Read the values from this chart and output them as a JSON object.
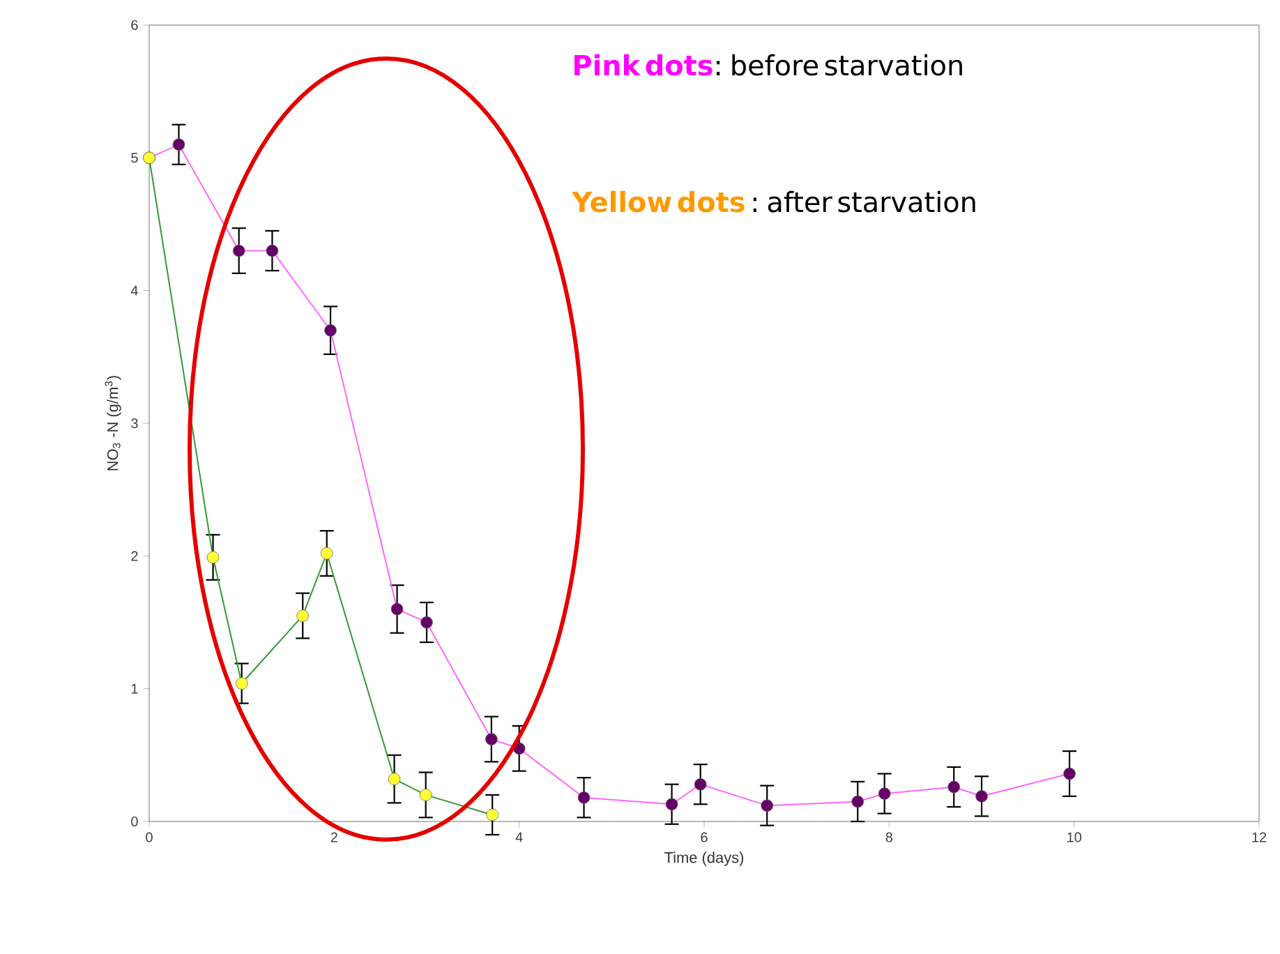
{
  "chart_data": {
    "type": "line",
    "xlabel": "Time (days)",
    "ylabel": "NO$_{3}$ -N (g/m$^{3}$)",
    "xlim": [
      0,
      12
    ],
    "xticks": [
      0,
      2,
      4,
      6,
      8,
      10,
      12
    ],
    "ylim": [
      0,
      6
    ],
    "yticks": [
      0,
      1,
      2,
      3,
      4,
      5,
      6
    ],
    "marker": "circle",
    "grid": false,
    "annotations": [
      "Pink dots",
      ": before starvation",
      "Yellow dots",
      " : after starvation"
    ],
    "series": [
      {
        "color": "#ff66ff",
        "colors": [
          "#660066",
          "#660066",
          "#660066",
          "#660066",
          "#660066",
          "#660066",
          "#660066",
          "#660066",
          "#660066",
          "#660066",
          "#660066",
          "#660066",
          "#660066",
          "#660066",
          "#660066",
          "#660066",
          "#660066",
          "#660066"
        ],
        "x": [
          0,
          0.32,
          0.97,
          1.33,
          1.96,
          2.68,
          3.0,
          3.7,
          4.0,
          4.7,
          5.65,
          5.96,
          6.68,
          7.66,
          7.95,
          8.7,
          9.0,
          9.95
        ],
        "values": [
          5.0,
          5.1,
          4.3,
          4.3,
          3.7,
          1.6,
          1.5,
          0.62,
          0.55,
          0.18,
          0.13,
          0.28,
          0.12,
          0.15,
          0.21,
          0.26,
          0.19,
          0.36
        ],
        "errors": [
          null,
          0.15,
          0.17,
          0.15,
          0.18,
          0.18,
          0.15,
          0.17,
          0.17,
          0.15,
          0.15,
          0.15,
          0.15,
          0.15,
          0.15,
          0.15,
          0.15,
          0.17
        ]
      },
      {
        "color": "#339933",
        "colors": [
          "#ffff33",
          "#ffff33",
          "#ffff33",
          "#ffff33",
          "#ffff33",
          "#ffff33",
          "#ffff33",
          "#ffff33"
        ],
        "x": [
          0,
          0.69,
          1.0,
          1.66,
          1.92,
          2.65,
          2.99,
          3.71
        ],
        "values": [
          5.0,
          1.99,
          1.04,
          1.55,
          2.02,
          0.32,
          0.2,
          0.05
        ],
        "errors": [
          null,
          0.17,
          0.15,
          0.17,
          0.17,
          0.18,
          0.17,
          0.15
        ]
      }
    ]
  }
}
